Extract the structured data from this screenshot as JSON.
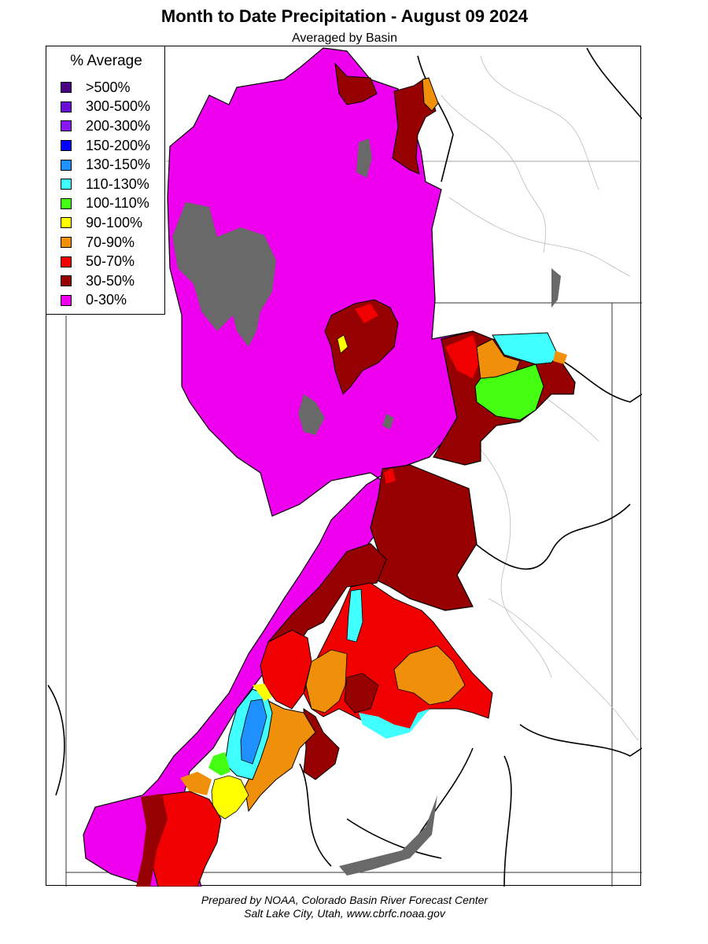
{
  "map": {
    "title": "Month to Date Precipitation - August 09 2024",
    "subtitle": "Averaged by Basin",
    "legend": {
      "title": "% Average",
      "items": [
        {
          "label": ">500%",
          "color": "#4b0082"
        },
        {
          "label": "300-500%",
          "color": "#6a0fd8"
        },
        {
          "label": "200-300%",
          "color": "#8a16f4"
        },
        {
          "label": "150-200%",
          "color": "#0000ff"
        },
        {
          "label": "130-150%",
          "color": "#1e90ff"
        },
        {
          "label": "110-130%",
          "color": "#40ffff"
        },
        {
          "label": "100-110%",
          "color": "#44ff11"
        },
        {
          "label": "90-100%",
          "color": "#ffff00"
        },
        {
          "label": "70-90%",
          "color": "#f0900a"
        },
        {
          "label": "50-70%",
          "color": "#f00000"
        },
        {
          "label": "30-50%",
          "color": "#960000"
        },
        {
          "label": "0-30%",
          "color": "#ee00ee"
        }
      ]
    },
    "lake_color": "#696969",
    "credit": {
      "line1": "Prepared by NOAA, Colorado Basin River Forecast Center",
      "line2": "Salt Lake City, Utah, www.cbrfc.noaa.gov"
    }
  }
}
